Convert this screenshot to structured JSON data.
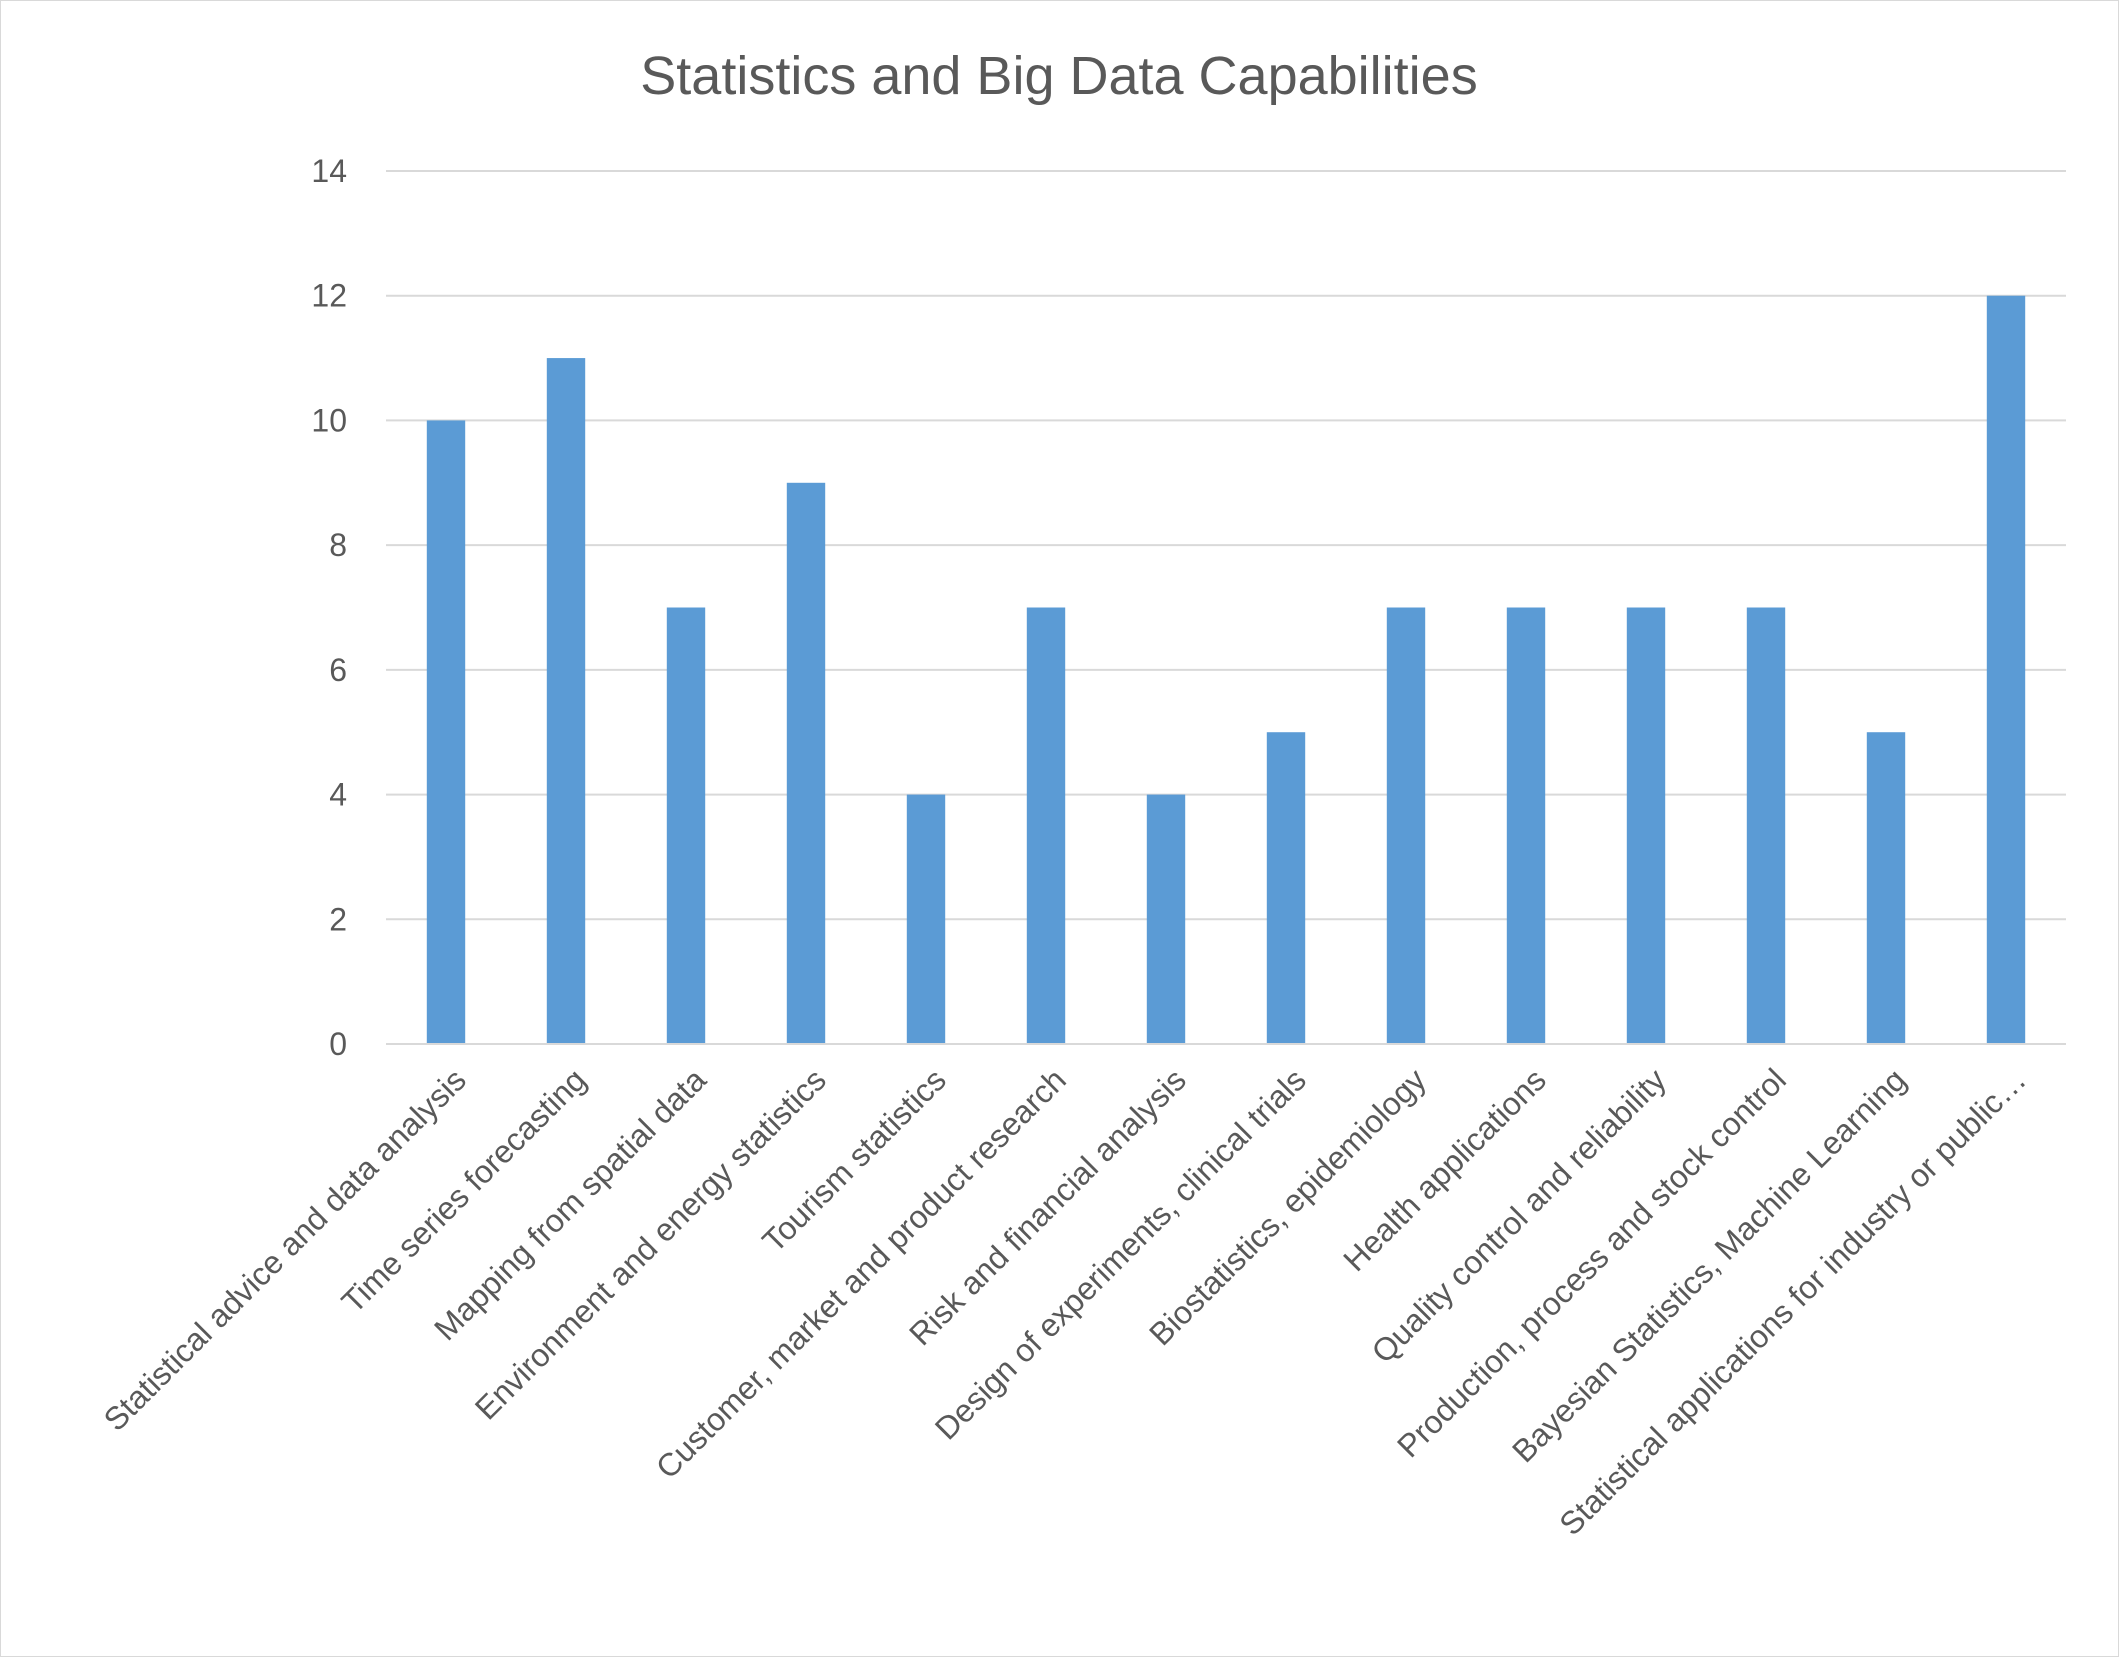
{
  "chart_data": {
    "type": "bar",
    "title": "Statistics and Big Data Capabilities",
    "xlabel": "",
    "ylabel": "",
    "ylim": [
      0,
      14
    ],
    "yticks": [
      0,
      2,
      4,
      6,
      8,
      10,
      12,
      14
    ],
    "grid": true,
    "legend": "none",
    "bar_color": "#5b9bd5",
    "categories": [
      "Statistical advice and data analysis",
      "Time series forecasting",
      "Mapping from spatial data",
      "Environment and energy statistics",
      "Tourism statistics",
      "Customer, market and product research",
      "Risk and financial analysis",
      "Design of experiments, clinical trials",
      "Biostatistics, epidemiology",
      "Health applications",
      "Quality control and reliability",
      "Production, process and stock control",
      "Bayesian Statistics, Machine Learning",
      "Statistical applications for industry or public…"
    ],
    "values": [
      10,
      11,
      7,
      9,
      4,
      7,
      4,
      5,
      7,
      7,
      7,
      7,
      5,
      12
    ]
  }
}
